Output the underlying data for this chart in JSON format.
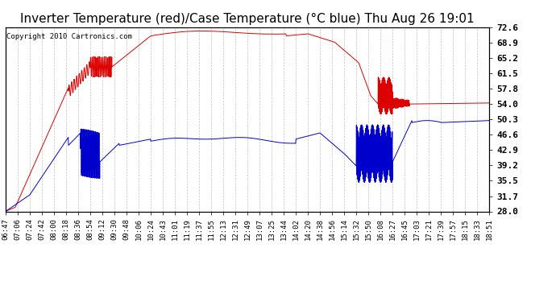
{
  "title": "Inverter Temperature (red)/Case Temperature (°C blue) Thu Aug 26 19:01",
  "copyright": "Copyright 2010 Cartronics.com",
  "ylabel_right_ticks": [
    72.6,
    68.9,
    65.2,
    61.5,
    57.8,
    54.0,
    50.3,
    46.6,
    42.9,
    39.2,
    35.5,
    31.7,
    28.0
  ],
  "ylim": [
    28.0,
    72.6
  ],
  "xlabels": [
    "06:47",
    "07:06",
    "07:24",
    "07:42",
    "08:00",
    "08:18",
    "08:36",
    "08:54",
    "09:12",
    "09:30",
    "09:48",
    "10:06",
    "10:24",
    "10:43",
    "11:01",
    "11:19",
    "11:37",
    "11:55",
    "12:13",
    "12:31",
    "12:49",
    "13:07",
    "13:25",
    "13:44",
    "14:02",
    "14:20",
    "14:38",
    "14:56",
    "15:14",
    "15:32",
    "15:50",
    "16:08",
    "16:27",
    "16:45",
    "17:03",
    "17:21",
    "17:39",
    "17:57",
    "18:15",
    "18:33",
    "18:51"
  ],
  "n_labels": 41,
  "background_color": "#ffffff",
  "grid_color": "#bbbbbb",
  "red_line_color": "#dd0000",
  "blue_line_color": "#0000cc",
  "title_fontsize": 11,
  "tick_fontsize": 6.5,
  "copyright_fontsize": 6.5
}
